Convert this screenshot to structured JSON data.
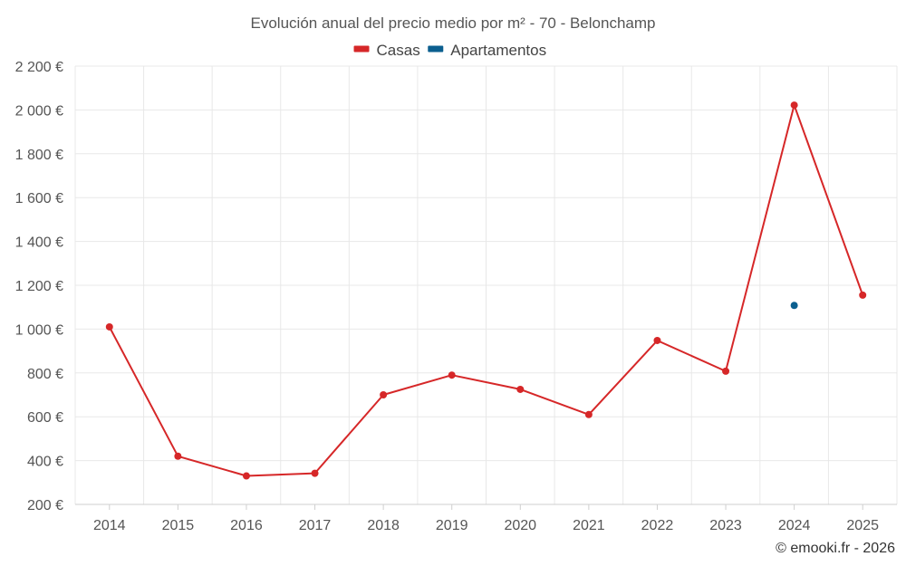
{
  "chart_data": {
    "type": "line",
    "title": "Evolución anual del precio medio por m² - 70 - Belonchamp",
    "xlabel": "",
    "ylabel": "",
    "categories": [
      "2014",
      "2015",
      "2016",
      "2017",
      "2018",
      "2019",
      "2020",
      "2021",
      "2022",
      "2023",
      "2024",
      "2025"
    ],
    "y_ticks": [
      "200 €",
      "400 €",
      "600 €",
      "800 €",
      "1 000 €",
      "1 200 €",
      "1 400 €",
      "1 600 €",
      "1 800 €",
      "2 000 €",
      "2 200 €"
    ],
    "ylim": [
      200,
      2200
    ],
    "grid": true,
    "legend_position": "top-center",
    "series": [
      {
        "name": "Casas",
        "color": "#d62728",
        "values": [
          1010,
          420,
          330,
          342,
          700,
          790,
          725,
          610,
          948,
          808,
          2022,
          1155
        ]
      },
      {
        "name": "Apartamentos",
        "color": "#0b5f8f",
        "values": [
          null,
          null,
          null,
          null,
          null,
          null,
          null,
          null,
          null,
          null,
          1108,
          null
        ]
      }
    ]
  },
  "footer": {
    "credit": "© emooki.fr - 2026"
  }
}
